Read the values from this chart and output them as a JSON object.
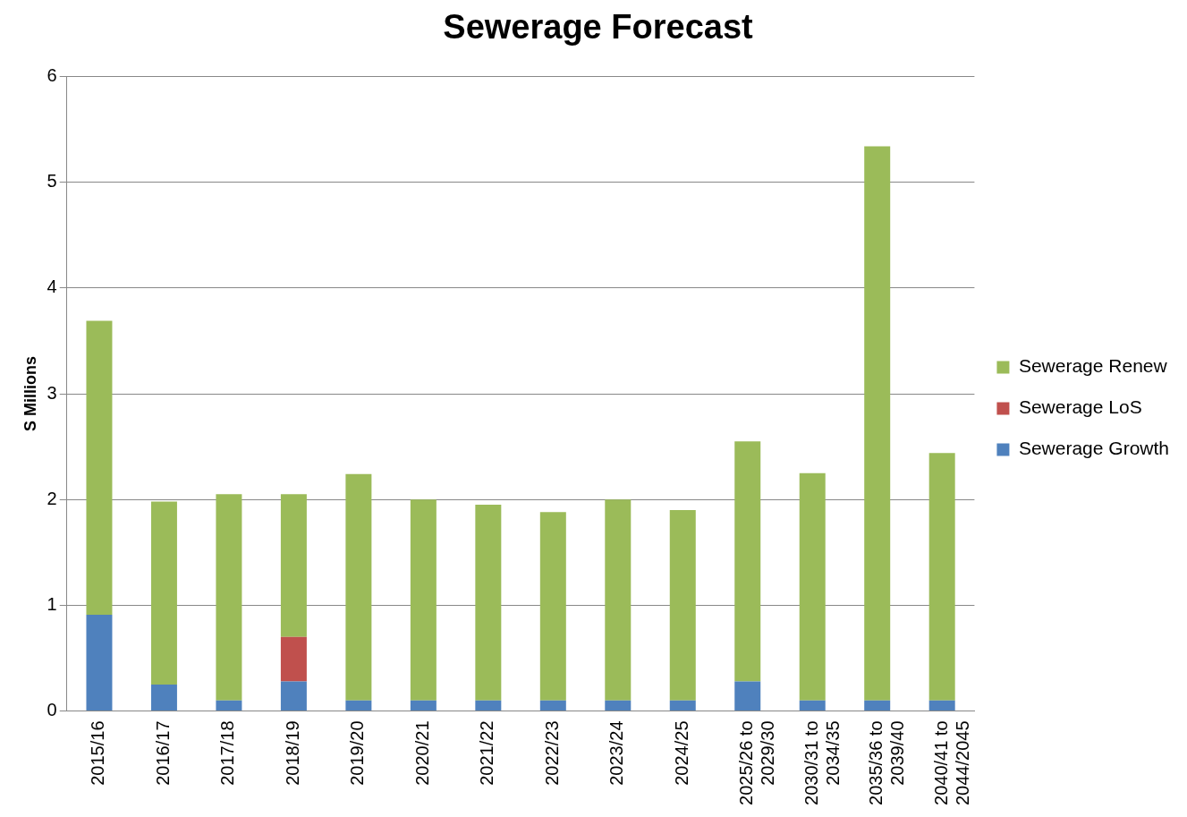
{
  "chart_data": {
    "type": "bar",
    "title": "Sewerage Forecast",
    "ylabel": "S Millions",
    "categories": [
      "2015/16",
      "2016/17",
      "2017/18",
      "2018/19",
      "2019/20",
      "2020/21",
      "2021/22",
      "2022/23",
      "2023/24",
      "2024/25",
      "2025/26 to 2029/30",
      "2030/31 to 2034/35",
      "2035/36 to 2039/40",
      "2040/41 to 2044/2045"
    ],
    "stacked": true,
    "series": [
      {
        "name": "Sewerage Growth",
        "color": "#4f81bd",
        "values": [
          0.91,
          0.25,
          0.1,
          0.28,
          0.1,
          0.1,
          0.1,
          0.1,
          0.1,
          0.1,
          0.28,
          0.1,
          0.1,
          0.1
        ]
      },
      {
        "name": "Sewerage LoS",
        "color": "#c0504d",
        "values": [
          null,
          null,
          null,
          0.42,
          null,
          null,
          null,
          null,
          null,
          null,
          null,
          null,
          null,
          null
        ]
      },
      {
        "name": "Sewerage Renew",
        "color": "#9bbb59",
        "values": [
          2.78,
          1.73,
          1.95,
          1.35,
          2.14,
          1.9,
          1.85,
          1.78,
          1.9,
          1.8,
          2.27,
          2.15,
          5.24,
          2.34
        ]
      }
    ],
    "ylim": [
      0,
      6
    ],
    "yticks": [
      0,
      1,
      2,
      3,
      4,
      5,
      6
    ],
    "grid": "y",
    "legend": "right"
  }
}
